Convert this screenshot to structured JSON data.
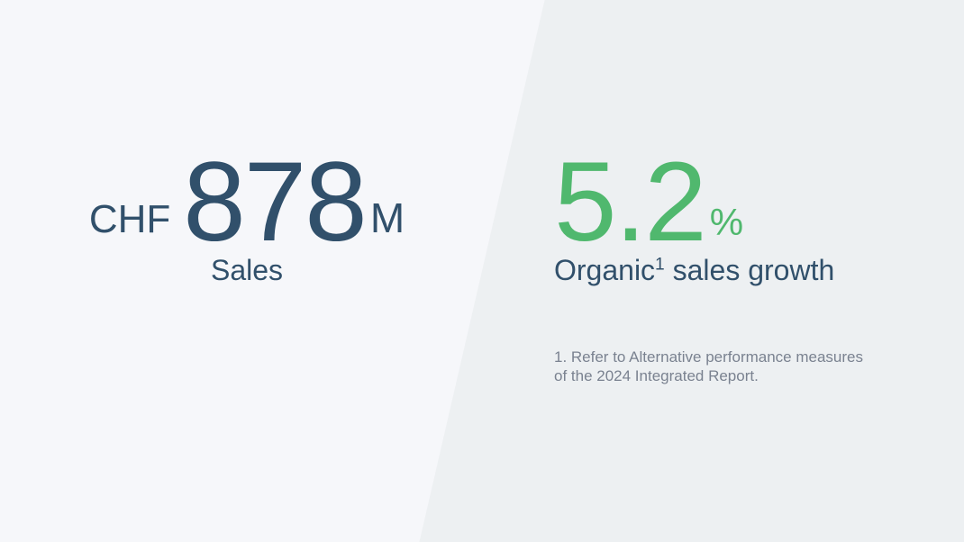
{
  "left_panel": {
    "currency": "CHF",
    "value": "878",
    "unit": "M",
    "label": "Sales"
  },
  "right_panel": {
    "value": "5.2",
    "unit": "%",
    "label_prefix": "Organic",
    "footnote_marker": "1",
    "label_suffix": " sales growth",
    "footnote": {
      "lines": [
        "1. Refer to Alternative performance measures",
        "of the 2024 Integrated Report."
      ]
    }
  },
  "colors": {
    "left_background": "#f6f7fa",
    "right_background": "#edf0f2",
    "primary_text": "#31506b",
    "accent_green": "#50b86e",
    "footnote_text": "#7a8290"
  }
}
